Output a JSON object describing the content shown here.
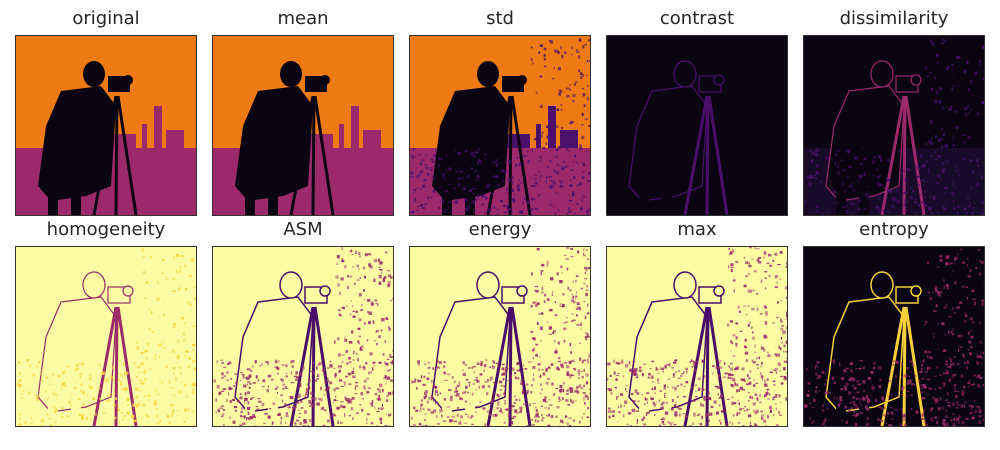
{
  "panels": [
    {
      "title": "original",
      "style": "warm-dark-figure"
    },
    {
      "title": "mean",
      "style": "warm-dark-figure"
    },
    {
      "title": "std",
      "style": "warm-dark-figure-noisy"
    },
    {
      "title": "contrast",
      "style": "dark-edges"
    },
    {
      "title": "dissimilarity",
      "style": "dark-edges-noisy"
    },
    {
      "title": "homogeneity",
      "style": "light-edges"
    },
    {
      "title": "ASM",
      "style": "light-edges-noisy"
    },
    {
      "title": "energy",
      "style": "light-edges-noisy"
    },
    {
      "title": "max",
      "style": "light-edges-noisy"
    },
    {
      "title": "entropy",
      "style": "dark-bright-edges"
    }
  ],
  "colors": {
    "colormap": "inferno",
    "orange": "#ee7a14",
    "dark": "#0b0413",
    "purple": "#4a0f6a",
    "magenta": "#9c2a6b",
    "light": "#fbfca3",
    "yellow": "#f7d13d"
  }
}
